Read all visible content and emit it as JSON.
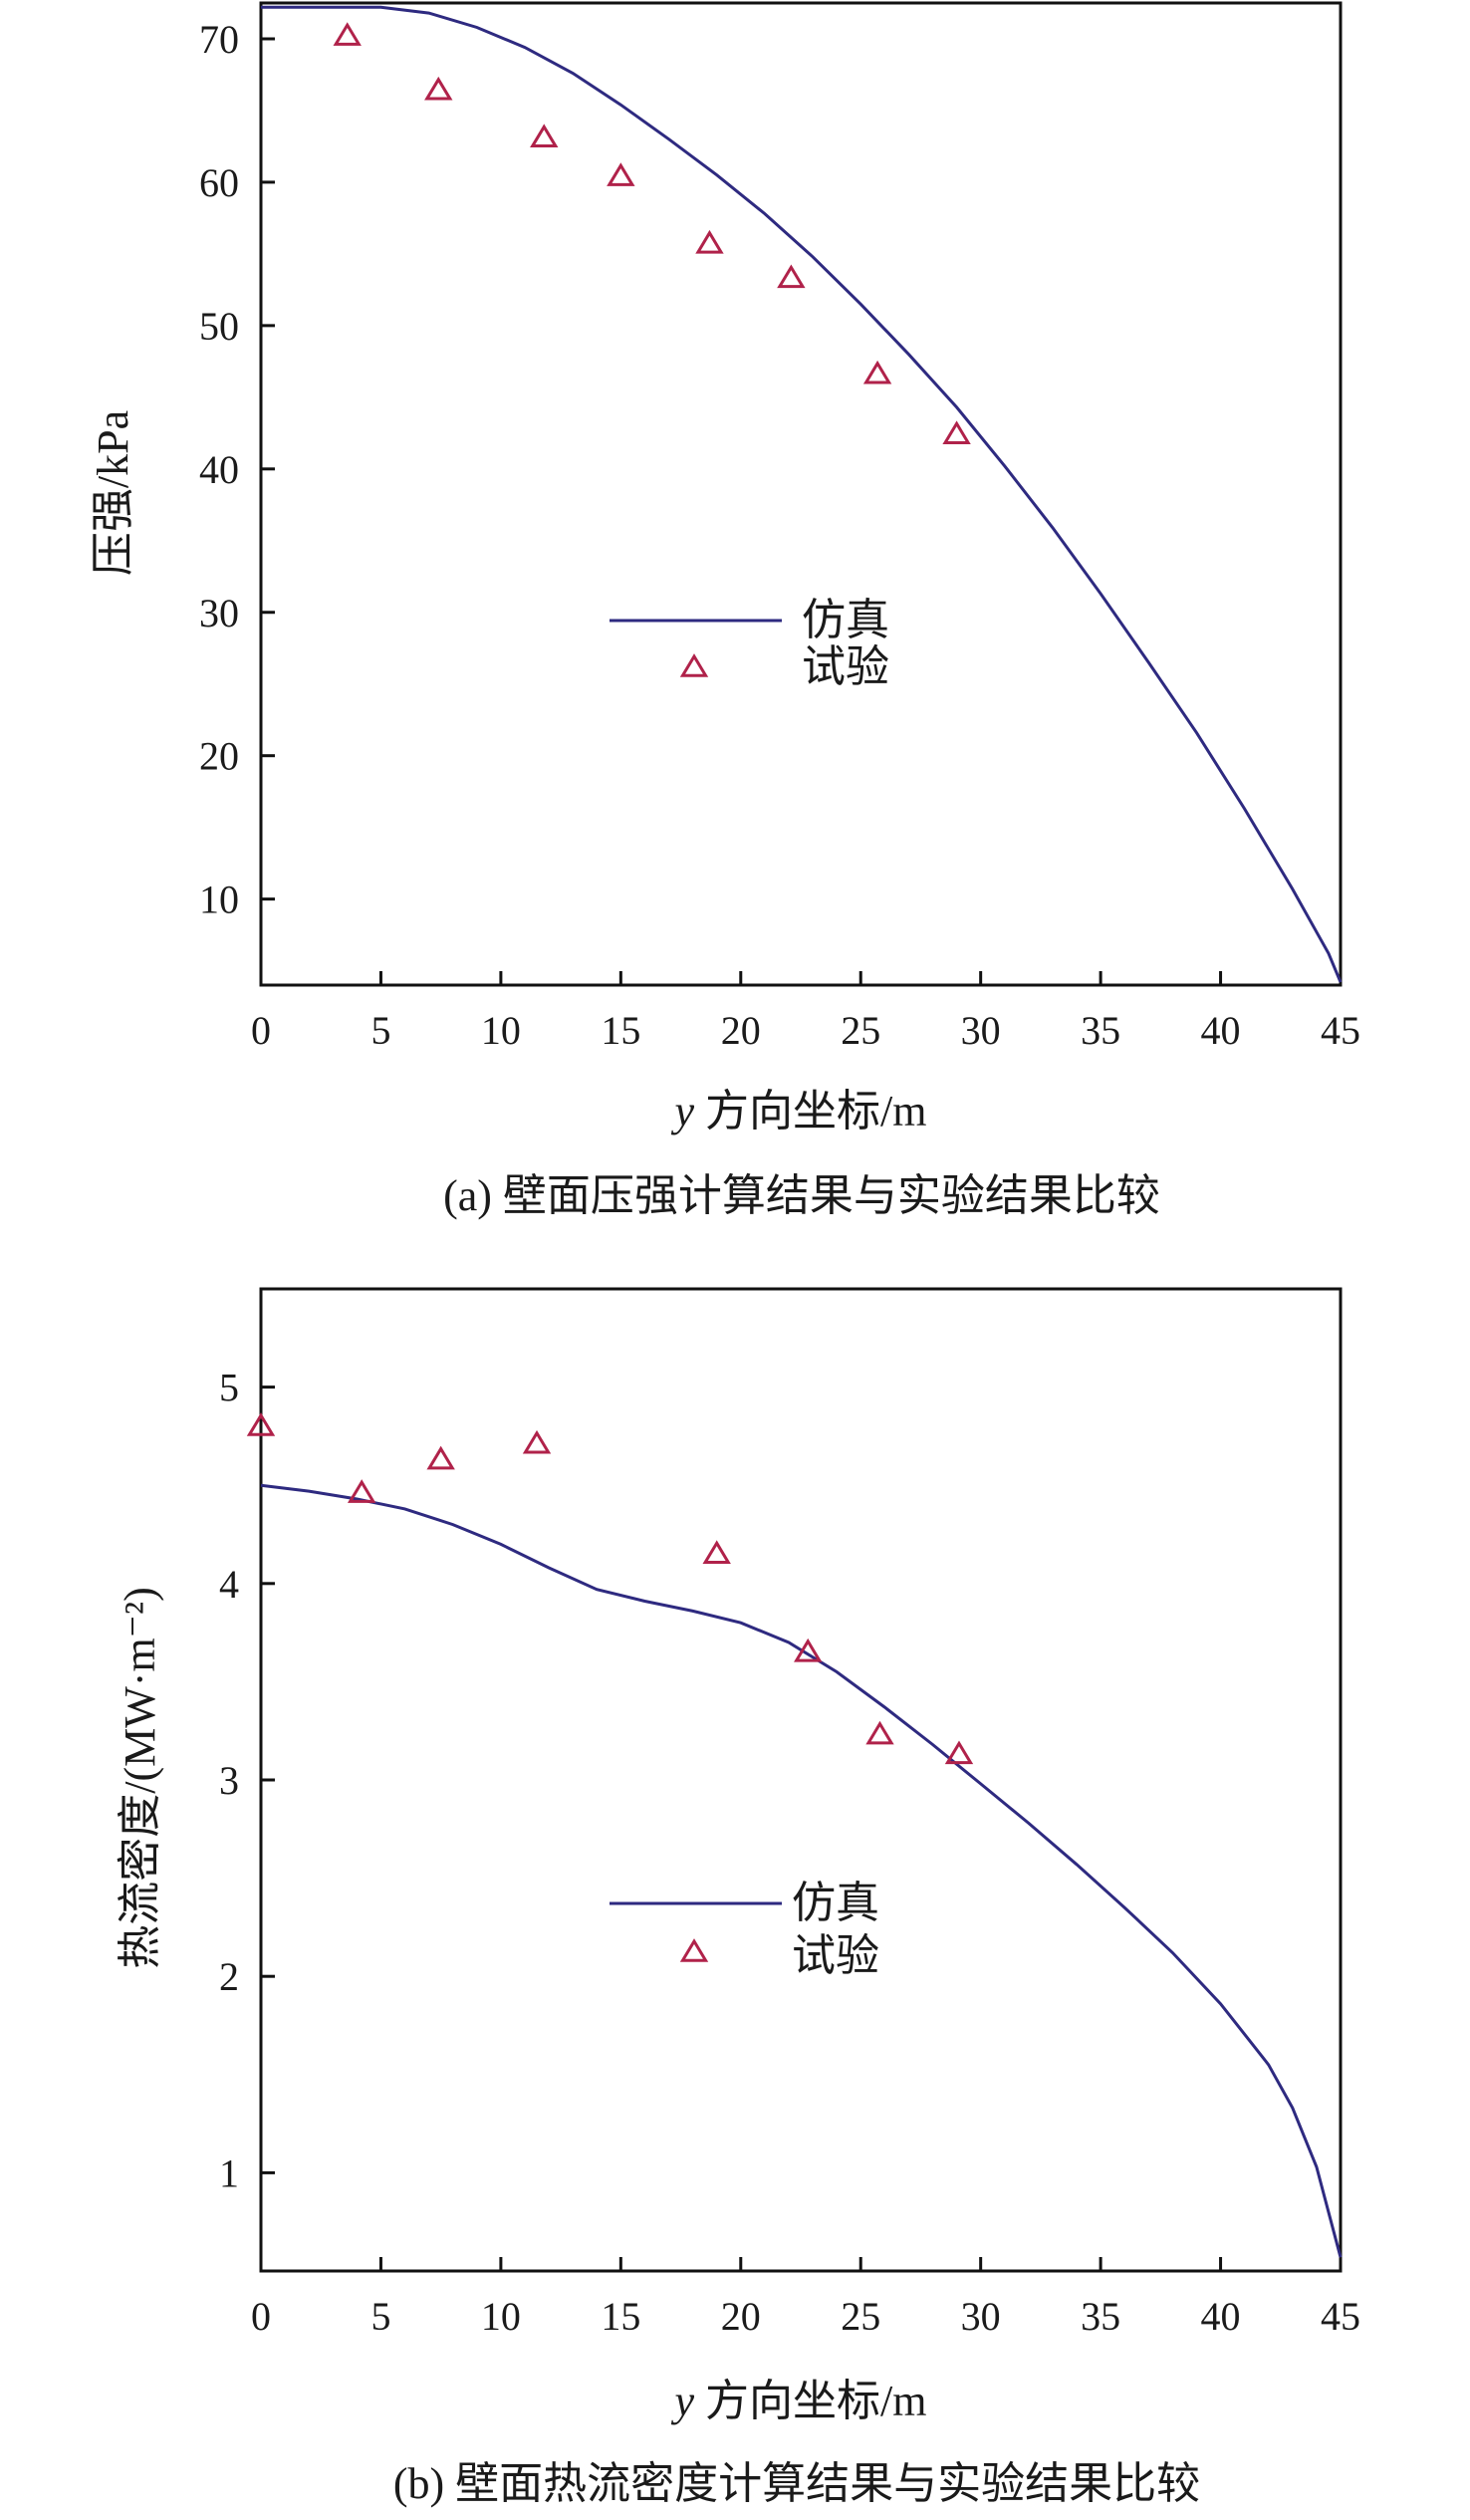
{
  "colors": {
    "simulation": "#2e2a80",
    "experiment": "#b0224a",
    "axis": "#111111"
  },
  "chart_data": [
    {
      "type": "line",
      "caption": "(a) 壁面压强计算结果与实验结果比较",
      "xlabel_italic": "y",
      "xlabel_rest": " 方向坐标/m",
      "ylabel": "压强/kPa",
      "xlim": [
        0,
        45
      ],
      "ylim": [
        4,
        72.5
      ],
      "xticks": [
        0,
        5,
        10,
        15,
        20,
        25,
        30,
        35,
        40,
        45
      ],
      "yticks": [
        10,
        20,
        30,
        40,
        50,
        60,
        70
      ],
      "grid": false,
      "legend_position": "center",
      "legend": {
        "line_label": "仿真",
        "marker_label": "试验"
      },
      "series": [
        {
          "name": "仿真",
          "kind": "line",
          "x": [
            0,
            3,
            5,
            7,
            9,
            11,
            13,
            15,
            17,
            19,
            21,
            23,
            25,
            27,
            29,
            31,
            33,
            35,
            37,
            39,
            41,
            43,
            44,
            44.5,
            45
          ],
          "y": [
            72.2,
            72.2,
            72.2,
            71.8,
            70.8,
            69.4,
            67.6,
            65.4,
            63.0,
            60.5,
            57.8,
            54.8,
            51.5,
            48.0,
            44.3,
            40.2,
            35.9,
            31.3,
            26.5,
            21.6,
            16.3,
            10.7,
            7.7,
            6.2,
            4.2
          ]
        },
        {
          "name": "试验",
          "kind": "marker",
          "x": [
            3.6,
            7.4,
            11.8,
            15.0,
            18.7,
            22.1,
            25.7,
            29.0
          ],
          "y": [
            70.2,
            66.4,
            63.1,
            60.4,
            55.7,
            53.3,
            46.6,
            42.4
          ]
        }
      ]
    },
    {
      "type": "line",
      "caption": "(b) 壁面热流密度计算结果与实验结果比较",
      "xlabel_italic": "y",
      "xlabel_rest": " 方向坐标/m",
      "ylabel": "热流密度/(MW·m⁻²)",
      "xlim": [
        0,
        45
      ],
      "ylim": [
        0.5,
        5.5
      ],
      "xticks": [
        0,
        5,
        10,
        15,
        20,
        25,
        30,
        35,
        40,
        45
      ],
      "yticks": [
        1,
        2,
        3,
        4,
        5
      ],
      "grid": false,
      "legend_position": "center",
      "legend": {
        "line_label": "仿真",
        "marker_label": "试验"
      },
      "series": [
        {
          "name": "仿真",
          "kind": "line",
          "x": [
            0,
            2,
            4,
            6,
            8,
            10,
            12,
            14,
            16,
            18,
            20,
            22,
            24,
            26,
            28,
            30,
            32,
            34,
            36,
            38,
            40,
            42,
            43,
            44,
            45
          ],
          "y": [
            4.5,
            4.47,
            4.43,
            4.38,
            4.3,
            4.2,
            4.08,
            3.97,
            3.91,
            3.86,
            3.8,
            3.7,
            3.55,
            3.37,
            3.18,
            2.98,
            2.78,
            2.57,
            2.35,
            2.12,
            1.86,
            1.55,
            1.33,
            1.03,
            0.57
          ]
        },
        {
          "name": "试验",
          "kind": "marker",
          "x": [
            0,
            4.2,
            7.5,
            11.5,
            19.0,
            22.8,
            25.8,
            29.1
          ],
          "y": [
            4.8,
            4.46,
            4.63,
            4.71,
            4.15,
            3.65,
            3.23,
            3.13
          ]
        }
      ]
    }
  ]
}
